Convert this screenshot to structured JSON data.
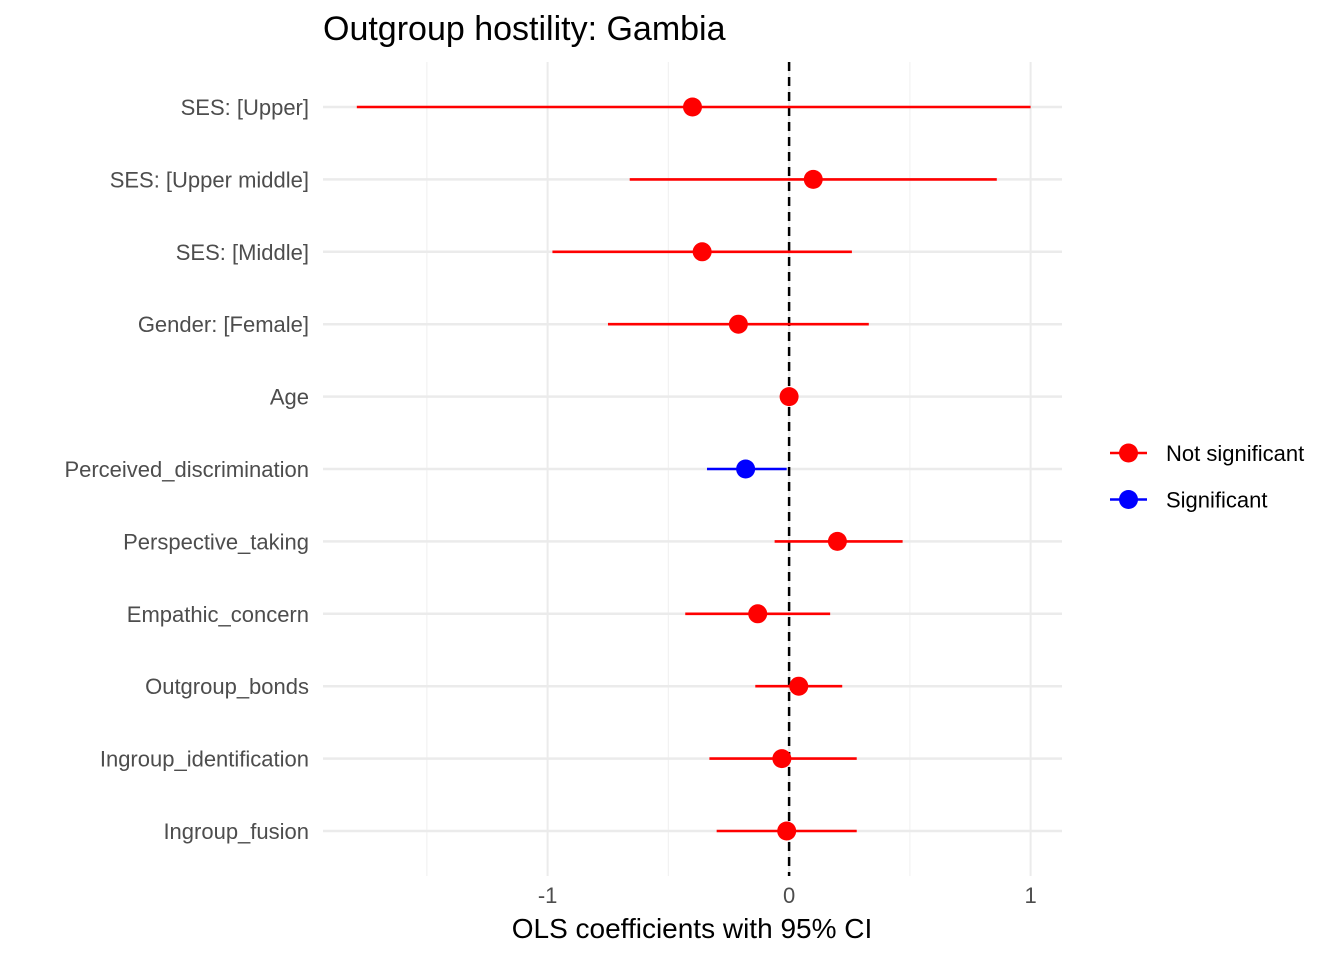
{
  "chart_data": {
    "type": "scatter",
    "title": "Outgroup hostility: Gambia",
    "xlabel": "OLS coefficients with 95% CI",
    "ylabel": "",
    "xlim": [
      -1.93,
      1.13
    ],
    "x_ticks": [
      -1,
      0,
      1
    ],
    "x_tick_labels": [
      "-1",
      "0",
      "1"
    ],
    "reference_line": {
      "x": 0,
      "style": "dashed"
    },
    "grid": true,
    "legend": {
      "position": "right",
      "entries": [
        {
          "label": "Not significant",
          "color": "#ff0000"
        },
        {
          "label": "Significant",
          "color": "#0000ff"
        }
      ]
    },
    "series": [
      {
        "term": "SES:  [Upper]",
        "estimate": -0.4,
        "ci_low": -1.79,
        "ci_high": 1.0,
        "significant": false
      },
      {
        "term": "SES:  [Upper middle]",
        "estimate": 0.1,
        "ci_low": -0.66,
        "ci_high": 0.86,
        "significant": false
      },
      {
        "term": "SES:  [Middle]",
        "estimate": -0.36,
        "ci_low": -0.98,
        "ci_high": 0.26,
        "significant": false
      },
      {
        "term": "Gender:  [Female]",
        "estimate": -0.21,
        "ci_low": -0.75,
        "ci_high": 0.33,
        "significant": false
      },
      {
        "term": "Age",
        "estimate": 0.0,
        "ci_low": -0.01,
        "ci_high": 0.01,
        "significant": false
      },
      {
        "term": "Perceived_discrimination",
        "estimate": -0.18,
        "ci_low": -0.34,
        "ci_high": -0.01,
        "significant": true
      },
      {
        "term": "Perspective_taking",
        "estimate": 0.2,
        "ci_low": -0.06,
        "ci_high": 0.47,
        "significant": false
      },
      {
        "term": "Empathic_concern",
        "estimate": -0.13,
        "ci_low": -0.43,
        "ci_high": 0.17,
        "significant": false
      },
      {
        "term": "Outgroup_bonds",
        "estimate": 0.04,
        "ci_low": -0.14,
        "ci_high": 0.22,
        "significant": false
      },
      {
        "term": "Ingroup_identification",
        "estimate": -0.03,
        "ci_low": -0.33,
        "ci_high": 0.28,
        "significant": false
      },
      {
        "term": "Ingroup_fusion",
        "estimate": -0.01,
        "ci_low": -0.3,
        "ci_high": 0.28,
        "significant": false
      }
    ]
  }
}
